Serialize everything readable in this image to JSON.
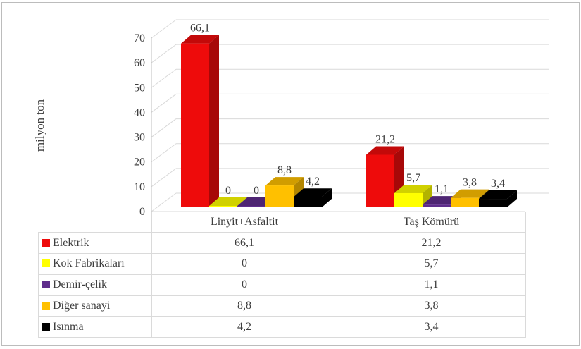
{
  "chart_data": {
    "type": "bar",
    "subtype": "3d-clustered-column",
    "title": "",
    "xlabel": "",
    "ylabel": "milyon ton",
    "categories": [
      "Linyit+Asfaltit",
      "Taş Kömürü"
    ],
    "series": [
      {
        "name": "Elektrik",
        "color": "#EE0B0B",
        "values": [
          66.1,
          21.2
        ],
        "labels": [
          "66,1",
          "21,2"
        ]
      },
      {
        "name": "Kok Fabrikaları",
        "color": "#FFFF00",
        "values": [
          0,
          5.7
        ],
        "labels": [
          "0",
          "5,7"
        ]
      },
      {
        "name": "Demir-çelik",
        "color": "#5F2D8C",
        "values": [
          0,
          1.1
        ],
        "labels": [
          "0",
          "1,1"
        ]
      },
      {
        "name": "Diğer sanayi",
        "color": "#FFC000",
        "values": [
          8.8,
          3.8
        ],
        "labels": [
          "8,8",
          "3,8"
        ]
      },
      {
        "name": "Isınma",
        "color": "#000000",
        "values": [
          4.2,
          3.4
        ],
        "labels": [
          "4,2",
          "3,4"
        ]
      }
    ],
    "y_axis": {
      "min": 0,
      "max": 70,
      "step": 10,
      "tick_labels": [
        "0",
        "10",
        "20",
        "30",
        "40",
        "50",
        "60",
        "70"
      ]
    },
    "grid": true,
    "data_labels_shown": true,
    "legend_position": "data-table-left",
    "grid_color": "#D9D9D9",
    "axis_color": "#BFBFBF",
    "text_color": "#3E3E3E"
  },
  "table": {
    "header": [
      "Linyit+Asfaltit",
      "Taş Kömürü"
    ],
    "rows": [
      {
        "label": "Elektrik",
        "values": [
          "66,1",
          "21,2"
        ]
      },
      {
        "label": "Kok Fabrikaları",
        "values": [
          "0",
          "5,7"
        ]
      },
      {
        "label": "Demir-çelik",
        "values": [
          "0",
          "1,1"
        ]
      },
      {
        "label": "Diğer sanayi",
        "values": [
          "8,8",
          "3,8"
        ]
      },
      {
        "label": "Isınma",
        "values": [
          "4,2",
          "3,4"
        ]
      }
    ]
  }
}
